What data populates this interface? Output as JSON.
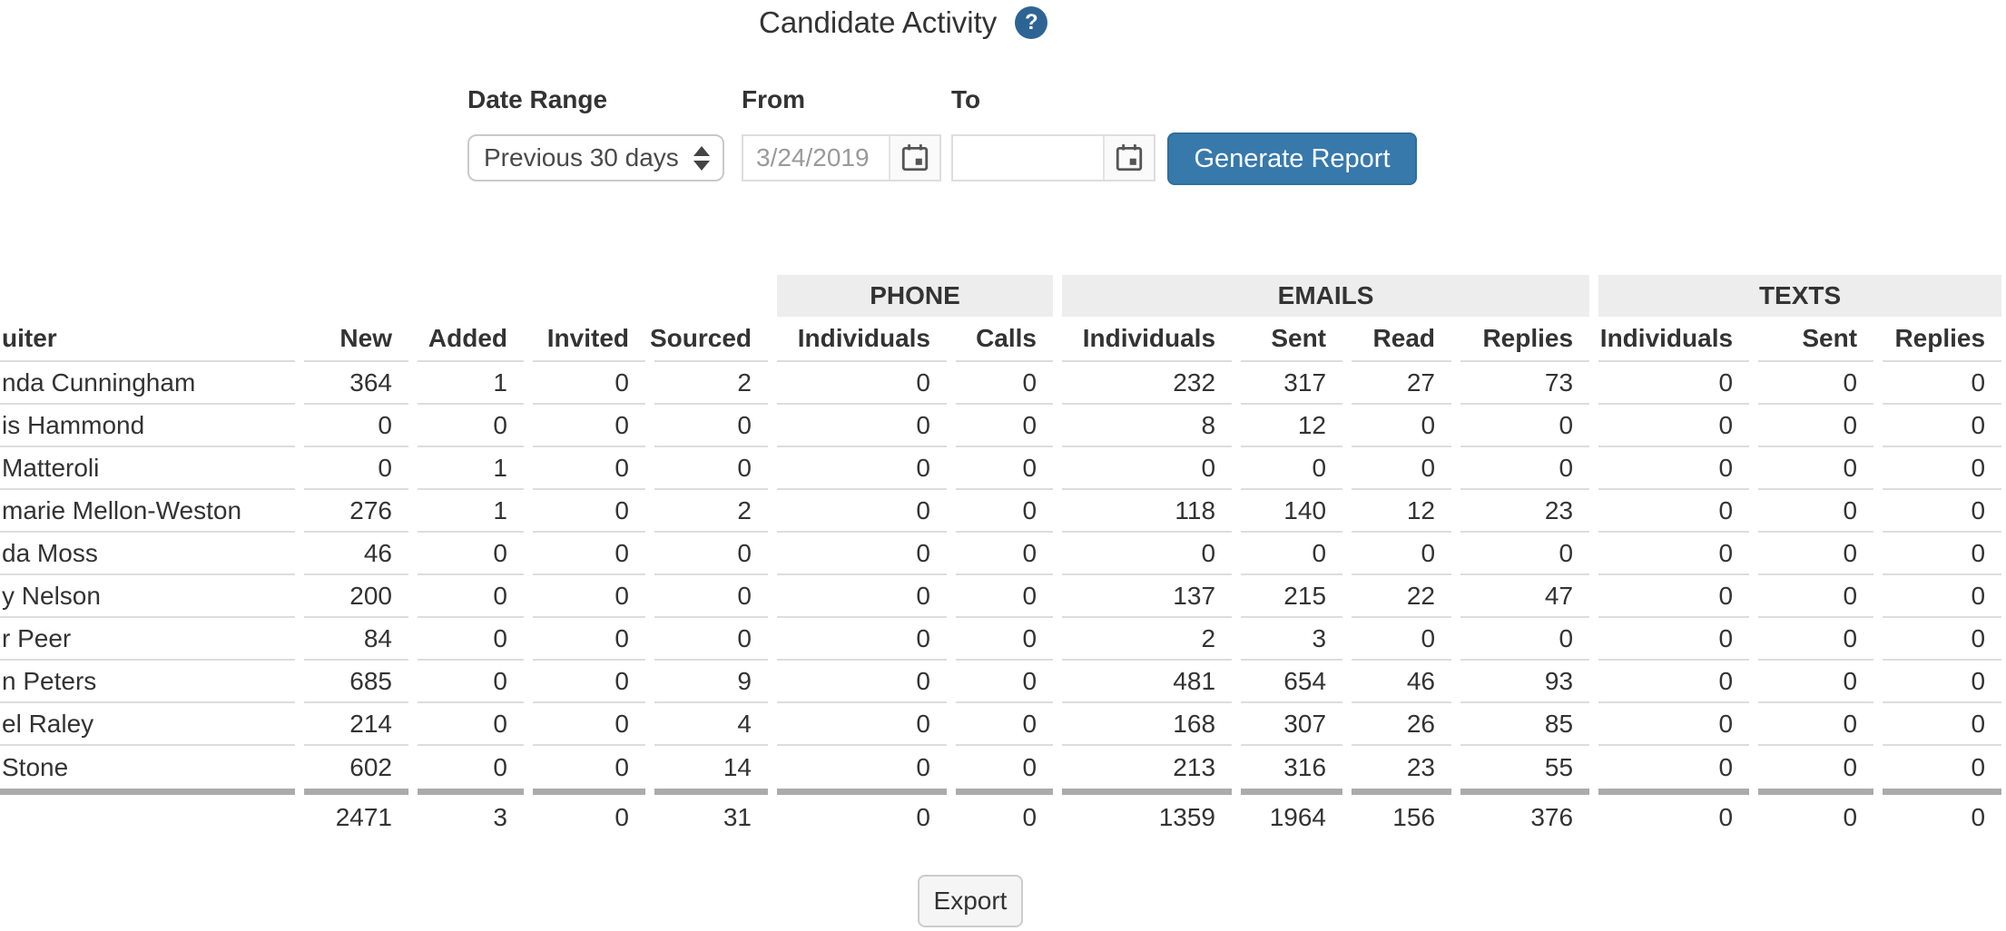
{
  "title": "Candidate Activity",
  "help_icon_glyph": "?",
  "filters": {
    "date_range_label": "Date Range",
    "date_range_value": "Previous 30 days",
    "from_label": "From",
    "from_value": "3/24/2019",
    "to_label": "To",
    "to_value": "",
    "generate_label": "Generate Report"
  },
  "table": {
    "recruiter_header_visible": "uiter",
    "groups": [
      {
        "label": "PHONE",
        "span": 2
      },
      {
        "label": "EMAILS",
        "span": 4
      },
      {
        "label": "TEXTS",
        "span": 3
      }
    ],
    "columns": [
      "uiter",
      "New",
      "Added",
      "Invited",
      "Sourced",
      "Individuals",
      "Calls",
      "Individuals",
      "Sent",
      "Read",
      "Replies",
      "Individuals",
      "Sent",
      "Replies"
    ],
    "rows": [
      [
        "nda Cunningham",
        364,
        1,
        0,
        2,
        0,
        0,
        232,
        317,
        27,
        73,
        0,
        0,
        0
      ],
      [
        "is Hammond",
        0,
        0,
        0,
        0,
        0,
        0,
        8,
        12,
        0,
        0,
        0,
        0,
        0
      ],
      [
        "Matteroli",
        0,
        1,
        0,
        0,
        0,
        0,
        0,
        0,
        0,
        0,
        0,
        0,
        0
      ],
      [
        "marie Mellon-Weston",
        276,
        1,
        0,
        2,
        0,
        0,
        118,
        140,
        12,
        23,
        0,
        0,
        0
      ],
      [
        "da Moss",
        46,
        0,
        0,
        0,
        0,
        0,
        0,
        0,
        0,
        0,
        0,
        0,
        0
      ],
      [
        "y Nelson",
        200,
        0,
        0,
        0,
        0,
        0,
        137,
        215,
        22,
        47,
        0,
        0,
        0
      ],
      [
        "r Peer",
        84,
        0,
        0,
        0,
        0,
        0,
        2,
        3,
        0,
        0,
        0,
        0,
        0
      ],
      [
        "n Peters",
        685,
        0,
        0,
        9,
        0,
        0,
        481,
        654,
        46,
        93,
        0,
        0,
        0
      ],
      [
        "el Raley",
        214,
        0,
        0,
        4,
        0,
        0,
        168,
        307,
        26,
        85,
        0,
        0,
        0
      ],
      [
        "Stone",
        602,
        0,
        0,
        14,
        0,
        0,
        213,
        316,
        23,
        55,
        0,
        0,
        0
      ]
    ],
    "totals": [
      "",
      2471,
      3,
      0,
      31,
      0,
      0,
      1359,
      1964,
      156,
      376,
      0,
      0,
      0
    ]
  },
  "export_label": "Export",
  "colors": {
    "accent_blue": "#3779ab",
    "help_icon_blue": "#2e6494",
    "group_header_bg": "#ededed",
    "row_border": "#dddddd",
    "totals_border": "#ababab",
    "muted_text": "#9a9a9a"
  }
}
